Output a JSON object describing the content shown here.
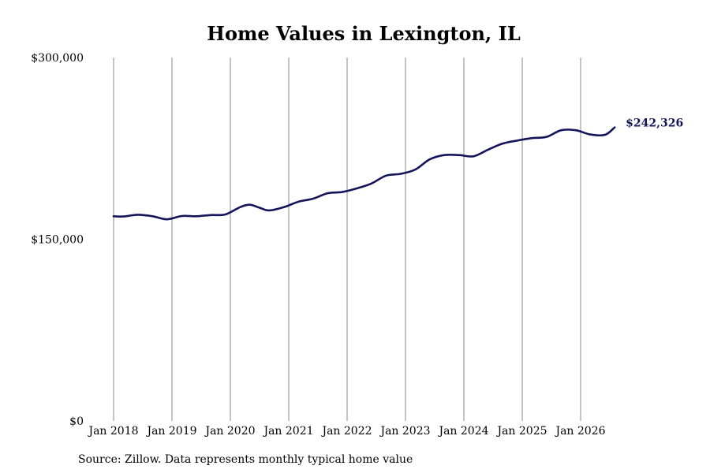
{
  "colors": {
    "line": "#14145a",
    "grid": "#8a8a8a",
    "text": "#000000"
  },
  "chart_data": {
    "type": "line",
    "title": "Home Values in Lexington, IL",
    "source": "Source: Zillow. Data represents monthly typical home value",
    "xlabel": "",
    "ylabel": "",
    "grid": "vertical",
    "legend": "none",
    "ylim": [
      0,
      300000
    ],
    "y_ticks": [
      {
        "value": 0,
        "label": "$0"
      },
      {
        "value": 150000,
        "label": "$150,000"
      },
      {
        "value": 300000,
        "label": "$300,000"
      }
    ],
    "x_ticks": [
      {
        "year": 2018,
        "label": "Jan 2018"
      },
      {
        "year": 2019,
        "label": "Jan 2019"
      },
      {
        "year": 2020,
        "label": "Jan 2020"
      },
      {
        "year": 2021,
        "label": "Jan 2021"
      },
      {
        "year": 2022,
        "label": "Jan 2022"
      },
      {
        "year": 2023,
        "label": "Jan 2023"
      },
      {
        "year": 2024,
        "label": "Jan 2024"
      },
      {
        "year": 2025,
        "label": "Jan 2025"
      },
      {
        "year": 2026,
        "label": "Jan 2026"
      }
    ],
    "end_label": "$242,326",
    "series": [
      {
        "name": "",
        "x": [
          "2018-01",
          "2018-03",
          "2018-06",
          "2018-09",
          "2018-12",
          "2019-03",
          "2019-06",
          "2019-09",
          "2019-12",
          "2020-03",
          "2020-05",
          "2020-07",
          "2020-09",
          "2020-12",
          "2021-03",
          "2021-06",
          "2021-09",
          "2021-12",
          "2022-03",
          "2022-06",
          "2022-09",
          "2022-12",
          "2023-03",
          "2023-06",
          "2023-09",
          "2023-12",
          "2024-03",
          "2024-06",
          "2024-09",
          "2024-12",
          "2025-03",
          "2025-06",
          "2025-09",
          "2025-12",
          "2026-03",
          "2026-06",
          "2026-08"
        ],
        "y": [
          169000,
          168800,
          170200,
          169000,
          166500,
          169200,
          169000,
          170000,
          170500,
          176500,
          178500,
          176000,
          173800,
          176500,
          181000,
          183500,
          188000,
          189000,
          192000,
          196000,
          202500,
          204000,
          207500,
          216000,
          219500,
          219500,
          218500,
          224000,
          229000,
          231500,
          233500,
          234500,
          240000,
          240000,
          236500,
          236200,
          242326
        ]
      }
    ]
  }
}
